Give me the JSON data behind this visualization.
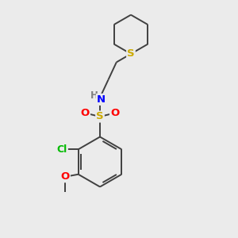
{
  "background_color": "#ebebeb",
  "atom_colors": {
    "C": "#000000",
    "H": "#808080",
    "N": "#0000ff",
    "O": "#ff0000",
    "S": "#ccaa00",
    "Cl": "#00bb00"
  },
  "bond_color": "#404040",
  "bond_lw": 1.4,
  "figsize": [
    3.0,
    3.0
  ],
  "dpi": 100,
  "xlim": [
    0,
    10
  ],
  "ylim": [
    0,
    10
  ]
}
